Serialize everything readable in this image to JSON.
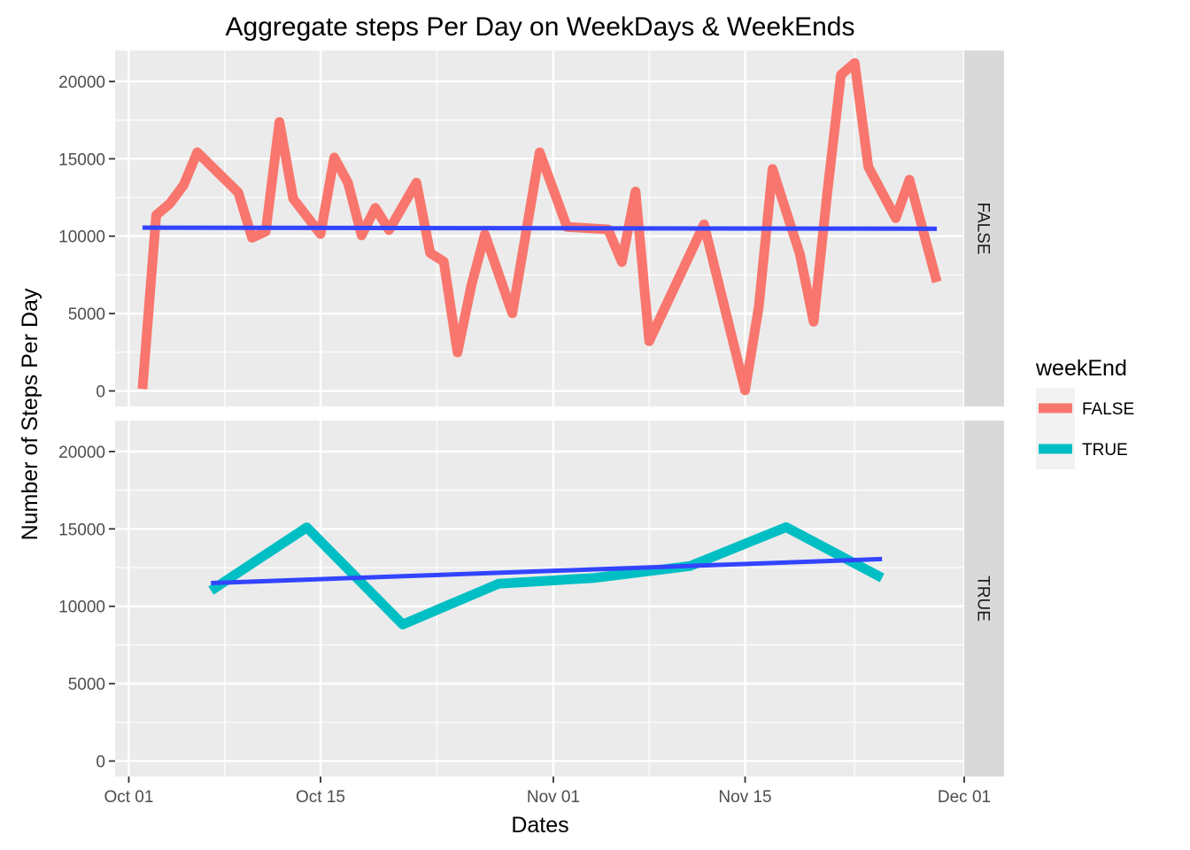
{
  "chart_data": {
    "type": "line",
    "title": "Aggregate steps Per Day on WeekDays & WeekEnds",
    "xlabel": "Dates",
    "ylabel": "Number of Steps Per Day",
    "x_type": "date",
    "xlim": [
      "2012-09-30",
      "2012-12-01"
    ],
    "ylim": [
      -1000,
      22000
    ],
    "x_ticks": [
      {
        "value": "2012-10-01",
        "label": "Oct 01"
      },
      {
        "value": "2012-10-15",
        "label": "Oct 15"
      },
      {
        "value": "2012-11-01",
        "label": "Nov 01"
      },
      {
        "value": "2012-11-15",
        "label": "Nov 15"
      },
      {
        "value": "2012-12-01",
        "label": "Dec 01"
      }
    ],
    "y_ticks": [
      0,
      5000,
      10000,
      15000,
      20000
    ],
    "y_tick_labels": [
      "0",
      "5000",
      "10000",
      "15000",
      "20000"
    ],
    "grid": true,
    "facet_by": "weekEnd",
    "legend": {
      "title": "weekEnd",
      "placement": "right",
      "entries": [
        {
          "label": "FALSE",
          "color": "#F8766D"
        },
        {
          "label": "TRUE",
          "color": "#00BFC4"
        }
      ]
    },
    "trend_color": "#3344FF",
    "panels": [
      {
        "strip": "FALSE",
        "series": {
          "color": "#F8766D",
          "points": [
            [
              "2012-10-02",
              126
            ],
            [
              "2012-10-03",
              11352
            ],
            [
              "2012-10-04",
              12116
            ],
            [
              "2012-10-05",
              13294
            ],
            [
              "2012-10-06",
              15420
            ],
            [
              "2012-10-09",
              12811
            ],
            [
              "2012-10-10",
              9900
            ],
            [
              "2012-10-11",
              10304
            ],
            [
              "2012-10-12",
              17382
            ],
            [
              "2012-10-13",
              12426
            ],
            [
              "2012-10-15",
              10139
            ],
            [
              "2012-10-16",
              15084
            ],
            [
              "2012-10-17",
              13452
            ],
            [
              "2012-10-18",
              10056
            ],
            [
              "2012-10-19",
              11829
            ],
            [
              "2012-10-20",
              10395
            ],
            [
              "2012-10-22",
              13460
            ],
            [
              "2012-10-23",
              8918
            ],
            [
              "2012-10-24",
              8355
            ],
            [
              "2012-10-25",
              2492
            ],
            [
              "2012-10-26",
              6778
            ],
            [
              "2012-10-27",
              10119
            ],
            [
              "2012-10-29",
              5018
            ],
            [
              "2012-10-31",
              15414
            ],
            [
              "2012-11-02",
              10600
            ],
            [
              "2012-11-05",
              10439
            ],
            [
              "2012-11-06",
              8334
            ],
            [
              "2012-11-07",
              12883
            ],
            [
              "2012-11-08",
              3219
            ],
            [
              "2012-11-12",
              10765
            ],
            [
              "2012-11-15",
              41
            ],
            [
              "2012-11-16",
              5441
            ],
            [
              "2012-11-17",
              14339
            ],
            [
              "2012-11-19",
              8841
            ],
            [
              "2012-11-20",
              4472
            ],
            [
              "2012-11-21",
              12787
            ],
            [
              "2012-11-22",
              20427
            ],
            [
              "2012-11-23",
              21194
            ],
            [
              "2012-11-24",
              14478
            ],
            [
              "2012-11-26",
              11162
            ],
            [
              "2012-11-27",
              13646
            ],
            [
              "2012-11-29",
              7047
            ]
          ]
        },
        "trend": {
          "start": [
            "2012-10-02",
            10550
          ],
          "end": [
            "2012-11-29",
            10480
          ]
        }
      },
      {
        "strip": "TRUE",
        "series": {
          "color": "#00BFC4",
          "points": [
            [
              "2012-10-07",
              11015
            ],
            [
              "2012-10-14",
              15098
            ],
            [
              "2012-10-21",
              8821
            ],
            [
              "2012-10-28",
              11458
            ],
            [
              "2012-11-04",
              11834
            ],
            [
              "2012-11-11",
              12608
            ],
            [
              "2012-11-18",
              15110
            ],
            [
              "2012-11-25",
              11834
            ]
          ]
        },
        "trend": {
          "start": [
            "2012-10-07",
            11500
          ],
          "end": [
            "2012-11-25",
            13050
          ]
        }
      }
    ]
  }
}
